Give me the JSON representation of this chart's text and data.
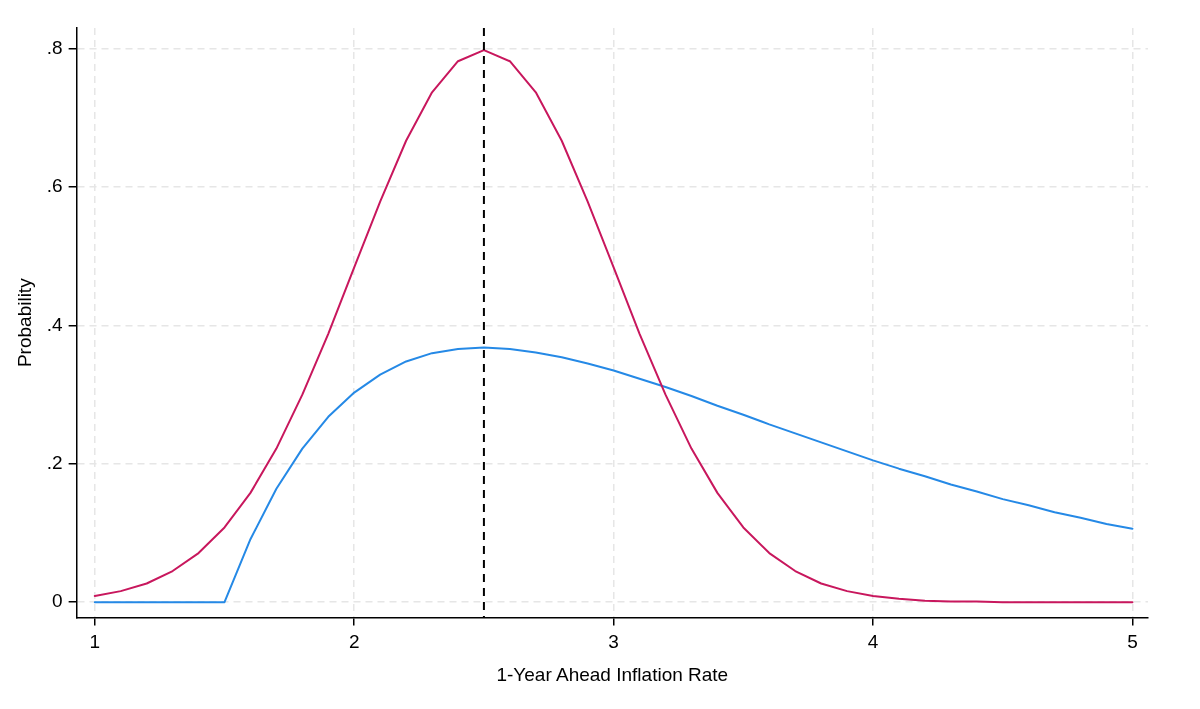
{
  "chart_data": {
    "type": "line",
    "xlabel": "1-Year Ahead Inflation Rate",
    "ylabel": "Probability",
    "xlim": [
      0.93,
      5.06
    ],
    "ylim": [
      -0.022,
      0.83
    ],
    "xticks": [
      1,
      2,
      3,
      4,
      5
    ],
    "yticks": [
      {
        "value": 0,
        "label": "0"
      },
      {
        "value": 0.2,
        "label": ".2"
      },
      {
        "value": 0.4,
        "label": ".4"
      },
      {
        "value": 0.6,
        "label": ".6"
      },
      {
        "value": 0.8,
        "label": ".8"
      }
    ],
    "grid": true,
    "legend": false,
    "marker": "none",
    "line_style": "solid",
    "ref_lines": [
      {
        "axis": "x",
        "value": 2.5,
        "color": "#000000",
        "line_style": "dashed"
      }
    ],
    "series": [
      {
        "color": "#c8175d",
        "x": [
          1,
          1.1,
          1.2,
          1.3,
          1.4,
          1.5,
          1.6,
          1.7,
          1.8,
          1.9,
          2,
          2.1,
          2.2,
          2.3,
          2.4,
          2.5,
          2.6,
          2.7,
          2.8,
          2.9,
          3,
          3.1,
          3.2,
          3.3,
          3.4,
          3.5,
          3.6,
          3.7,
          3.8,
          3.9,
          4,
          4.1,
          4.2,
          4.3,
          4.4,
          4.5,
          4.7,
          5
        ],
        "values": [
          0.009,
          0.016,
          0.027,
          0.045,
          0.071,
          0.108,
          0.158,
          0.222,
          0.3,
          0.388,
          0.484,
          0.579,
          0.667,
          0.737,
          0.782,
          0.798,
          0.782,
          0.737,
          0.667,
          0.579,
          0.484,
          0.388,
          0.3,
          0.222,
          0.158,
          0.108,
          0.071,
          0.045,
          0.027,
          0.016,
          0.009,
          0.005,
          0.002,
          0.001,
          0.001,
          0,
          0,
          0
        ]
      },
      {
        "color": "#2589e6",
        "x": [
          1,
          1.5,
          1.6,
          1.7,
          1.8,
          1.9,
          2,
          2.1,
          2.2,
          2.3,
          2.4,
          2.5,
          2.6,
          2.7,
          2.8,
          2.9,
          3,
          3.1,
          3.2,
          3.3,
          3.4,
          3.5,
          3.6,
          3.7,
          3.8,
          3.9,
          4,
          4.1,
          4.2,
          4.3,
          4.4,
          4.5,
          4.6,
          4.7,
          4.8,
          4.9,
          5
        ],
        "values": [
          0,
          0,
          0.091,
          0.164,
          0.222,
          0.268,
          0.303,
          0.329,
          0.348,
          0.36,
          0.366,
          0.368,
          0.366,
          0.361,
          0.354,
          0.345,
          0.335,
          0.323,
          0.311,
          0.298,
          0.284,
          0.271,
          0.257,
          0.244,
          0.231,
          0.218,
          0.205,
          0.193,
          0.182,
          0.17,
          0.16,
          0.149,
          0.14,
          0.13,
          0.122,
          0.113,
          0.106
        ]
      }
    ]
  }
}
